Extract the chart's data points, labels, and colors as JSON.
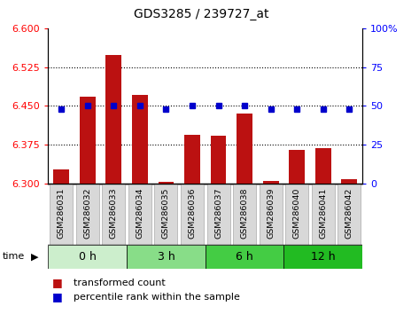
{
  "title": "GDS3285 / 239727_at",
  "samples": [
    "GSM286031",
    "GSM286032",
    "GSM286033",
    "GSM286034",
    "GSM286035",
    "GSM286036",
    "GSM286037",
    "GSM286038",
    "GSM286039",
    "GSM286040",
    "GSM286041",
    "GSM286042"
  ],
  "bar_values": [
    6.328,
    6.468,
    6.548,
    6.472,
    6.303,
    6.395,
    6.393,
    6.435,
    6.305,
    6.365,
    6.368,
    6.308
  ],
  "percentile_values": [
    48,
    50,
    50,
    50,
    48,
    50,
    50,
    50,
    48,
    48,
    48,
    48
  ],
  "ylim_left": [
    6.3,
    6.6
  ],
  "ylim_right": [
    0,
    100
  ],
  "yticks_left": [
    6.3,
    6.375,
    6.45,
    6.525,
    6.6
  ],
  "yticks_right": [
    0,
    25,
    50,
    75,
    100
  ],
  "ytick_right_labels": [
    "0",
    "25",
    "50",
    "75",
    "100%"
  ],
  "bar_color": "#bb1111",
  "dot_color": "#0000cc",
  "bar_bottom": 6.3,
  "time_groups": [
    {
      "label": "0 h",
      "indices": [
        0,
        1,
        2
      ],
      "color": "#cceecc"
    },
    {
      "label": "3 h",
      "indices": [
        3,
        4,
        5
      ],
      "color": "#88dd88"
    },
    {
      "label": "6 h",
      "indices": [
        6,
        7,
        8
      ],
      "color": "#44cc44"
    },
    {
      "label": "12 h",
      "indices": [
        9,
        10,
        11
      ],
      "color": "#22bb22"
    }
  ],
  "legend_bar_label": "transformed count",
  "legend_dot_label": "percentile rank within the sample",
  "sample_box_color": "#d8d8d8",
  "sample_box_edge": "#aaaaaa"
}
